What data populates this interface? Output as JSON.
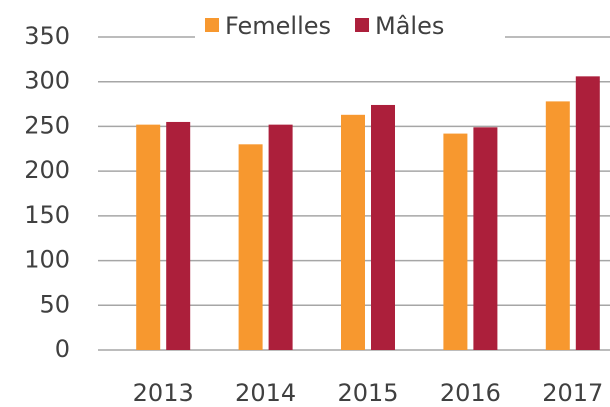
{
  "chart_data": {
    "type": "bar",
    "categories": [
      "2013",
      "2014",
      "2015",
      "2016",
      "2017"
    ],
    "series": [
      {
        "name": "Femelles",
        "color": "#f7982f",
        "values": [
          252,
          230,
          263,
          242,
          278
        ]
      },
      {
        "name": "Mâles",
        "color": "#ac1f3b",
        "values": [
          255,
          252,
          274,
          249,
          306
        ]
      }
    ],
    "ylim": [
      0,
      350
    ],
    "yticks": [
      0,
      50,
      100,
      150,
      200,
      250,
      300,
      350
    ],
    "grid": true,
    "legend": "top"
  }
}
